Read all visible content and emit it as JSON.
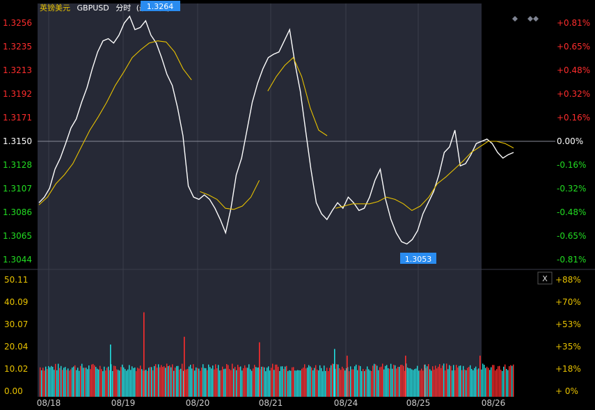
{
  "header": {
    "instrument": "英镑美元",
    "symbol": "GBPUSD",
    "mode": "分时",
    "mode_suffix": "(最近5天)"
  },
  "controls": {
    "close_label": "X",
    "diamond_icons": [
      "diamond-icon",
      "diamond-icon",
      "diamond-icon"
    ]
  },
  "colors": {
    "background": "#000000",
    "plot_bg": "#262936",
    "grid": "#3a3d4a",
    "price_line": "#ffffff",
    "average_line": "#e8c200",
    "up": "#ff2d2d",
    "down": "#22e0e0",
    "neutral_label": "#ffffff",
    "highlight_label_bg": "#2a8cf0",
    "volume_axis_label": "#e8c200"
  },
  "chart_data": [
    {
      "type": "line",
      "title": "英镑美元 GBPUSD 分时",
      "x_ticks": [
        "08/18",
        "08/19",
        "08/20",
        "08/21",
        "08/24",
        "08/25",
        "08/26"
      ],
      "y_ticks_left": [
        "1.3256",
        "1.3235",
        "1.3213",
        "1.3192",
        "1.3171",
        "1.3150",
        "1.3128",
        "1.3107",
        "1.3086",
        "1.3065",
        "1.3044"
      ],
      "y_ticks_right": [
        "+0.81%",
        "+0.65%",
        "+0.48%",
        "+0.32%",
        "+0.16%",
        "0.00%",
        "-0.16%",
        "-0.32%",
        "-0.48%",
        "-0.65%",
        "-0.81%"
      ],
      "ylim": [
        1.3044,
        1.3256
      ],
      "reference_price": 1.315,
      "high_label": "1.3264",
      "low_label": "1.3053",
      "series": [
        {
          "values": [
            1.3095,
            1.31,
            1.3108,
            1.3125,
            1.3135,
            1.3148,
            1.3162,
            1.317,
            1.3185,
            1.3198,
            1.3215,
            1.323,
            1.324,
            1.3242,
            1.3238,
            1.3245,
            1.3256,
            1.3262,
            1.325,
            1.3252,
            1.3258,
            1.3245,
            1.3238,
            1.3225,
            1.321,
            1.32,
            1.318,
            1.3155,
            1.311,
            1.31,
            1.3098,
            1.3102,
            1.3098,
            1.309,
            1.308,
            1.3068,
            1.309,
            1.312,
            1.3135,
            1.316,
            1.3185,
            1.3202,
            1.3215,
            1.3225,
            1.3228,
            1.323,
            1.324,
            1.325,
            1.322,
            1.3195,
            1.316,
            1.3125,
            1.3095,
            1.3085,
            1.308,
            1.3088,
            1.3095,
            1.309,
            1.31,
            1.3095,
            1.3088,
            1.309,
            1.31,
            1.3115,
            1.3125,
            1.3098,
            1.308,
            1.3068,
            1.306,
            1.3058,
            1.3062,
            1.307,
            1.3085,
            1.3095,
            1.3105,
            1.312,
            1.314,
            1.3145,
            1.316,
            1.3128,
            1.313,
            1.3138,
            1.3148,
            1.315,
            1.3152,
            1.3148,
            1.314,
            1.3135,
            1.3138,
            1.314
          ]
        },
        {
          "values": [
            1.3093,
            1.31,
            1.3112,
            1.312,
            1.313,
            1.3145,
            1.316,
            1.3172,
            1.3185,
            1.32,
            1.3212,
            1.3225,
            1.3232,
            1.3238,
            1.324,
            1.3239,
            1.323,
            1.3215,
            1.3205,
            1.3105,
            1.3102,
            1.3098,
            1.309,
            1.3089,
            1.3092,
            1.31,
            1.3115,
            1.3195,
            1.3208,
            1.3218,
            1.3225,
            1.3208,
            1.318,
            1.316,
            1.3155,
            1.309,
            1.3092,
            1.3094,
            1.3094,
            1.3094,
            1.3096,
            1.31,
            1.3098,
            1.3094,
            1.3088,
            1.3092,
            1.31,
            1.3112,
            1.3118,
            1.3125,
            1.3132,
            1.314,
            1.3145,
            1.315,
            1.315,
            1.3148,
            1.3144
          ]
        }
      ]
    },
    {
      "type": "bar",
      "y_ticks_left": [
        "50.11",
        "40.09",
        "30.07",
        "20.04",
        "10.02",
        "0.00"
      ],
      "y_ticks_right": [
        "+88%",
        "+70%",
        "+53%",
        "+35%",
        "+18%",
        "+ 0%"
      ],
      "ylim": [
        0,
        50.11
      ]
    }
  ]
}
